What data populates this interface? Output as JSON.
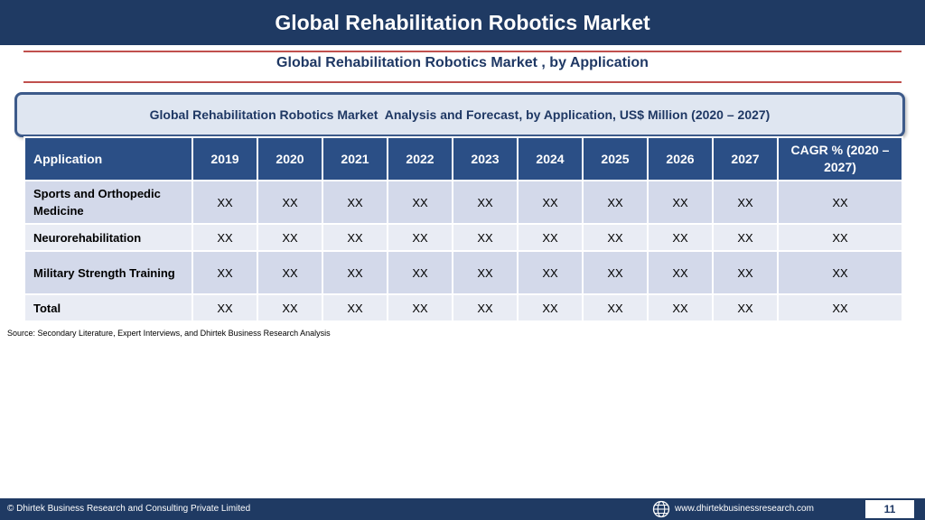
{
  "header": {
    "title": "Global Rehabilitation Robotics Market"
  },
  "subtitle": "Global Rehabilitation Robotics Market , by Application",
  "banner": "Global Rehabilitation Robotics Market  Analysis and Forecast, by Application, US$ Million (2020 – 2027)",
  "table": {
    "columns": [
      "Application",
      "2019",
      "2020",
      "2021",
      "2022",
      "2023",
      "2024",
      "2025",
      "2026",
      "2027",
      "CAGR % (2020 – 2027)"
    ],
    "rows": [
      {
        "label": "Sports and Orthopedic Medicine",
        "values": [
          "XX",
          "XX",
          "XX",
          "XX",
          "XX",
          "XX",
          "XX",
          "XX",
          "XX",
          "XX"
        ]
      },
      {
        "label": "Neurorehabilitation",
        "values": [
          "XX",
          "XX",
          "XX",
          "XX",
          "XX",
          "XX",
          "XX",
          "XX",
          "XX",
          "XX"
        ]
      },
      {
        "label": "Military Strength Training",
        "values": [
          "XX",
          "XX",
          "XX",
          "XX",
          "XX",
          "XX",
          "XX",
          "XX",
          "XX",
          "XX"
        ]
      },
      {
        "label": "Total",
        "values": [
          "XX",
          "XX",
          "XX",
          "XX",
          "XX",
          "XX",
          "XX",
          "XX",
          "XX",
          "XX"
        ]
      }
    ]
  },
  "source": "Source: Secondary Literature, Expert Interviews, and Dhirtek Business Research Analysis",
  "footer": {
    "copyright": "© Dhirtek Business Research and Consulting Private Limited",
    "website": "www.dhirtekbusinessresearch.com",
    "page_number": "11",
    "globe_icon": "globe-icon"
  },
  "colors": {
    "header_bg": "#1f3a63",
    "table_header_bg": "#2b4f86",
    "row_odd": "#d3d9ea",
    "row_even": "#e9ecf4",
    "accent_rule": "#c0504d",
    "title_text": "#1f3864"
  }
}
